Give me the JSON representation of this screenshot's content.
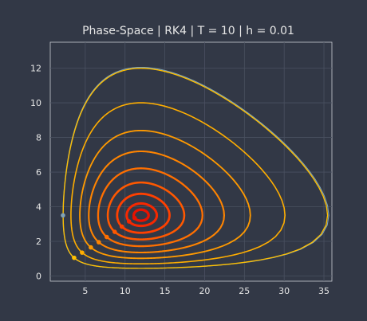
{
  "chart_data": {
    "type": "line",
    "title": "Phase-Space | RK4 | T = 10 | h = 0.01",
    "xlabel": "",
    "ylabel": "",
    "xlim": [
      0.6,
      36.0
    ],
    "ylim": [
      -0.3,
      13.5
    ],
    "xticks": [
      5,
      10,
      15,
      20,
      25,
      30,
      35
    ],
    "yticks": [
      0,
      2,
      4,
      6,
      8,
      10,
      12
    ],
    "grid": true,
    "equilibrium": {
      "x": 12,
      "y": 3.5
    },
    "series": [
      {
        "x0": 2.2,
        "y0": 3.5,
        "color": "#7fa3b8"
      },
      {
        "x0": 3.6,
        "y0": 1.05,
        "color": "#ffc000"
      },
      {
        "x0": 4.6,
        "y0": 1.35,
        "color": "#ffae00"
      },
      {
        "x0": 5.7,
        "y0": 1.65,
        "color": "#ff9a00"
      },
      {
        "x0": 6.7,
        "y0": 1.95,
        "color": "#ff8400"
      },
      {
        "x0": 7.7,
        "y0": 2.25,
        "color": "#ff6f00"
      },
      {
        "x0": 8.7,
        "y0": 2.55,
        "color": "#ff5800"
      },
      {
        "x0": 9.6,
        "y0": 2.85,
        "color": "#ff4000"
      },
      {
        "x0": 10.5,
        "y0": 3.15,
        "color": "#f52800"
      },
      {
        "x0": 11.2,
        "y0": 3.35,
        "color": "#e81200"
      }
    ]
  }
}
